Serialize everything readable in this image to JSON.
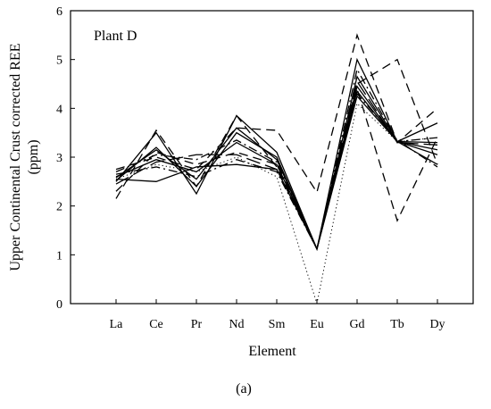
{
  "chart_data": {
    "type": "line",
    "title": "Plant D",
    "xlabel": "Element",
    "ylabel_line1": "Upper Continental Crust corrected REE",
    "ylabel_line2": "(ppm)",
    "caption": "(a)",
    "categories": [
      "La",
      "Ce",
      "Pr",
      "Nd",
      "Sm",
      "Eu",
      "Gd",
      "Tb",
      "Dy"
    ],
    "ylim": [
      0,
      6
    ],
    "yticks": [
      0,
      1,
      2,
      3,
      4,
      5,
      6
    ],
    "grid": false,
    "legend": "none",
    "series": [
      {
        "style": "solid",
        "values": [
          2.55,
          2.5,
          2.8,
          2.85,
          2.75,
          1.12,
          4.25,
          3.32,
          2.85
        ]
      },
      {
        "style": "solid",
        "values": [
          2.5,
          3.5,
          2.25,
          3.85,
          3.1,
          1.12,
          4.45,
          3.32,
          3.7
        ]
      },
      {
        "style": "solid",
        "values": [
          2.58,
          3.15,
          2.55,
          3.6,
          2.95,
          1.12,
          4.65,
          3.32,
          3.3
        ]
      },
      {
        "style": "solid",
        "values": [
          2.52,
          3.2,
          2.4,
          3.5,
          3.0,
          1.12,
          5.0,
          3.32,
          3.05
        ]
      },
      {
        "style": "solid",
        "values": [
          2.6,
          2.95,
          2.7,
          3.3,
          2.85,
          1.12,
          4.35,
          3.32,
          3.15
        ]
      },
      {
        "style": "dashed",
        "values": [
          2.75,
          3.0,
          2.75,
          3.6,
          3.55,
          2.28,
          5.5,
          3.3,
          4.0
        ]
      },
      {
        "style": "dashed",
        "values": [
          2.15,
          3.55,
          2.4,
          3.85,
          2.8,
          1.12,
          4.5,
          5.0,
          2.85
        ]
      },
      {
        "style": "dashed",
        "values": [
          2.3,
          3.1,
          2.85,
          3.1,
          2.85,
          1.12,
          4.4,
          1.7,
          3.4
        ]
      },
      {
        "style": "dashdot",
        "values": [
          2.7,
          3.05,
          2.95,
          3.35,
          2.9,
          1.12,
          4.3,
          3.35,
          2.8
        ]
      },
      {
        "style": "dashdot",
        "values": [
          2.65,
          2.8,
          2.6,
          2.95,
          2.7,
          1.12,
          4.8,
          3.32,
          3.4
        ]
      },
      {
        "style": "longdash",
        "values": [
          2.45,
          2.9,
          3.05,
          3.05,
          2.75,
          1.12,
          4.55,
          3.3,
          3.25
        ]
      },
      {
        "style": "dotted",
        "values": [
          2.55,
          2.85,
          2.7,
          3.0,
          2.6,
          0.0,
          4.1,
          3.32,
          3.4
        ]
      }
    ]
  }
}
